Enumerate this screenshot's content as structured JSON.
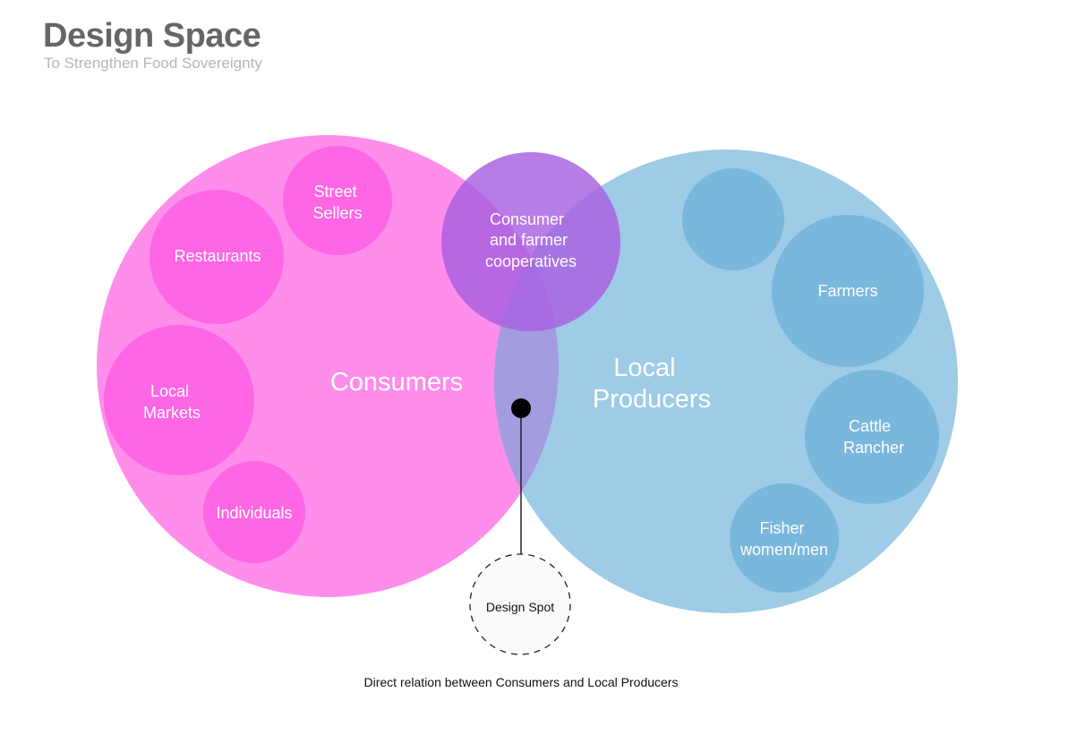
{
  "header": {
    "title": "Design Space",
    "subtitle": "To Strengthen Food Sovereignty"
  },
  "colors": {
    "consumers": "#ff8deb",
    "consumer_bubble": "#ff66e6",
    "producers": "#9ecbe6",
    "producer_bubble": "#7ab7dd",
    "cooperatives": "#a85fe0",
    "overlap": "#a39ddf"
  },
  "diagram": {
    "consumers": {
      "label": "Consumers",
      "groups": [
        {
          "lines": [
            "Street",
            "Sellers"
          ]
        },
        {
          "lines": [
            "Restaurants"
          ]
        },
        {
          "lines": [
            "Local",
            "Markets"
          ]
        },
        {
          "lines": [
            "Individuals"
          ]
        }
      ]
    },
    "producers": {
      "label_lines": [
        "Local",
        "Producers"
      ],
      "groups": [
        {
          "lines": []
        },
        {
          "lines": [
            "Farmers"
          ]
        },
        {
          "lines": [
            "Cattle",
            "Rancher"
          ]
        },
        {
          "lines": [
            "Fisher",
            "women/men"
          ]
        }
      ]
    },
    "cooperatives": {
      "lines": [
        "Consumer",
        "and farmer",
        "cooperatives"
      ]
    },
    "design_spot": {
      "label": "Design Spot",
      "caption": "Direct relation between Consumers and Local Producers"
    }
  }
}
